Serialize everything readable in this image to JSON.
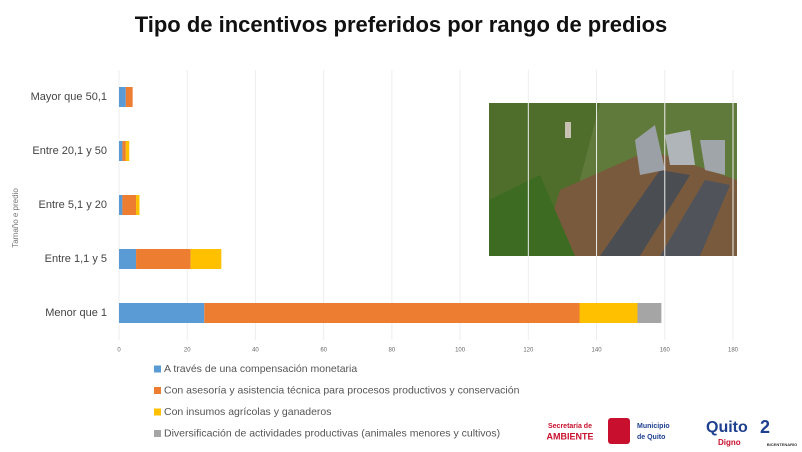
{
  "chart_data": {
    "type": "stacked-barh",
    "title": "Tipo de incentivos preferidos por rango de predios",
    "ylabel": "Tamaño e predio",
    "categories": [
      "Menor que 1",
      "Entre 1,1 y 5",
      "Entre 5,1 y 20",
      "Entre 20,1 y 50",
      "Mayor que 50,1"
    ],
    "series": [
      {
        "name": "A través de una compensación monetaria",
        "color": "#5b9bd5",
        "values": [
          25,
          5,
          1,
          1,
          2
        ]
      },
      {
        "name": "Con asesoría y asistencia técnica para procesos productivos y conservación",
        "color": "#ed7d31",
        "values": [
          110,
          16,
          4,
          1,
          2
        ]
      },
      {
        "name": "Con insumos agrícolas y ganaderos",
        "color": "#ffc000",
        "values": [
          17,
          9,
          1,
          1,
          0
        ]
      },
      {
        "name": "Diversificación de actividades productivas (animales menores y cultivos)",
        "color": "#a5a5a5",
        "values": [
          7,
          0,
          0,
          0,
          0
        ]
      }
    ],
    "xlim": [
      0,
      180
    ],
    "xticks": [
      0,
      20,
      40,
      60,
      80,
      100,
      120,
      140,
      160,
      180
    ],
    "grid": true,
    "legend": "bottom-left"
  },
  "logos": [
    "Secretaría de",
    "AMBIENTE",
    "Municipio",
    "de Quito",
    "Quito",
    "Digno",
    "BICENTENARIO"
  ]
}
